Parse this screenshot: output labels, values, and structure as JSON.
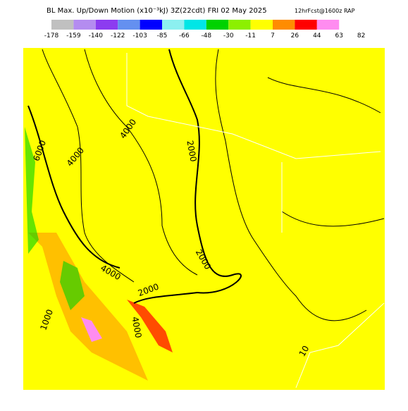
{
  "header": {
    "title": "BL Max. Up/Down Motion (x10⁻³kJ) 3Z(22cdt) FRI 02 May 2025",
    "subtitle": "12hrFcst@1600z RAP"
  },
  "colorbar": {
    "colors": [
      "#c0c0c0",
      "#b48cf0",
      "#8c3cf0",
      "#6490f0",
      "#0000ff",
      "#8cf0f0",
      "#00e6e6",
      "#00d200",
      "#8cf000",
      "#ffff00",
      "#ff8c00",
      "#ff0000",
      "#ff8cf0"
    ],
    "labels": [
      "-178",
      "-159",
      "-140",
      "-122",
      "-103",
      "-85",
      "-66",
      "-48",
      "-30",
      "-11",
      "7",
      "26",
      "44",
      "63",
      "82"
    ]
  },
  "map": {
    "contour_labels": [
      "6000",
      "4000",
      "4000",
      "2000",
      "2000",
      "4000",
      "2000",
      "1000",
      "4000",
      "10"
    ]
  }
}
